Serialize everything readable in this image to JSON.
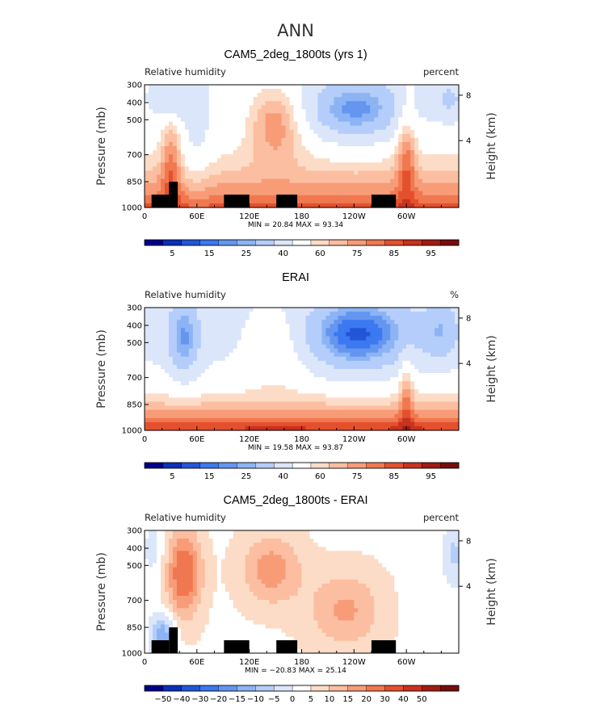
{
  "figure_title": "ANN",
  "chart_data": [
    {
      "type": "heatmap",
      "title": "CAM5_2deg_1800ts (yrs 1)",
      "left_label": "Relative humidity",
      "right_label": "percent",
      "ylabel": "Pressure (mb)",
      "ylabel_right": "Height (km)",
      "pressure_ticks": [
        "300",
        "400",
        "500",
        "700",
        "850",
        "1000"
      ],
      "height_ticks": [
        "8",
        "4"
      ],
      "lon_ticks": [
        "0",
        "60E",
        "120E",
        "180",
        "120W",
        "60W"
      ],
      "stats": "MIN =   20.84   MAX =   93.34",
      "colorbar_labels": [
        "5",
        "15",
        "25",
        "40",
        "60",
        "75",
        "85",
        "95"
      ],
      "palette": [
        "#00008c",
        "#0a2fb8",
        "#2255d8",
        "#3c78f0",
        "#6496f0",
        "#8cb4f5",
        "#b4cdfa",
        "#dce6fa",
        "#ffffff",
        "#fcdcc6",
        "#fcbea0",
        "#f89c78",
        "#f07850",
        "#e4502e",
        "#c8321e",
        "#a01c14",
        "#780c0c"
      ]
    },
    {
      "type": "heatmap",
      "title": "ERAI",
      "left_label": "Relative humidity",
      "right_label": "%",
      "ylabel": "Pressure (mb)",
      "ylabel_right": "Height (km)",
      "pressure_ticks": [
        "300",
        "400",
        "500",
        "700",
        "850",
        "1000"
      ],
      "height_ticks": [
        "8",
        "4"
      ],
      "lon_ticks": [
        "0",
        "60E",
        "120E",
        "180",
        "120W",
        "60W"
      ],
      "stats": "MIN =   19.58   MAX =   93.87",
      "colorbar_labels": [
        "5",
        "15",
        "25",
        "40",
        "60",
        "75",
        "85",
        "95"
      ],
      "palette": [
        "#00008c",
        "#0a2fb8",
        "#2255d8",
        "#3c78f0",
        "#6496f0",
        "#8cb4f5",
        "#b4cdfa",
        "#dce6fa",
        "#ffffff",
        "#fcdcc6",
        "#fcbea0",
        "#f89c78",
        "#f07850",
        "#e4502e",
        "#c8321e",
        "#a01c14",
        "#780c0c"
      ]
    },
    {
      "type": "heatmap",
      "title": "CAM5_2deg_1800ts - ERAI",
      "left_label": "Relative humidity",
      "right_label": "percent",
      "ylabel": "Pressure (mb)",
      "ylabel_right": "Height (km)",
      "pressure_ticks": [
        "300",
        "400",
        "500",
        "700",
        "850",
        "1000"
      ],
      "height_ticks": [
        "8",
        "4"
      ],
      "lon_ticks": [
        "0",
        "60E",
        "120E",
        "180",
        "120W",
        "60W"
      ],
      "stats": "MIN =  −20.83   MAX =   25.14",
      "colorbar_labels": [
        "−50",
        "−40",
        "−30",
        "−20",
        "−15",
        "−10",
        "−5",
        "0",
        "5",
        "10",
        "15",
        "20",
        "30",
        "40",
        "50"
      ],
      "palette": [
        "#00008c",
        "#0a2fb8",
        "#2255d8",
        "#3c78f0",
        "#6496f0",
        "#8cb4f5",
        "#b4cdfa",
        "#dce6fa",
        "#ffffff",
        "#fcdcc6",
        "#fcbea0",
        "#f89c78",
        "#f07850",
        "#e4502e",
        "#c8321e",
        "#a01c14",
        "#780c0c"
      ]
    }
  ]
}
